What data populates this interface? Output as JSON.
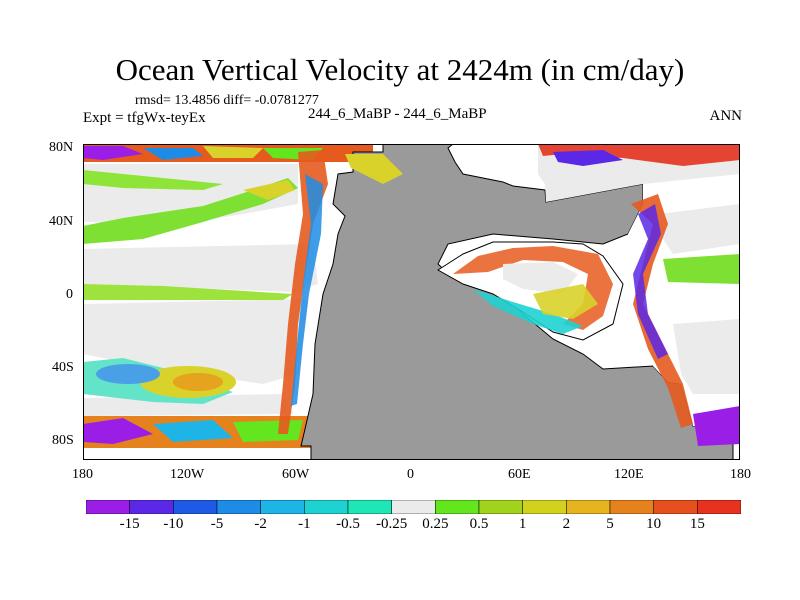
{
  "title": "Ocean Vertical Velocity at 2424m (in cm/day)",
  "stats_text": "rmsd= 13.4856 diff= -0.0781277",
  "expt_text": "Expt = tfgWx-teyEx",
  "center_label": "244_6_MaBP - 244_6_MaBP",
  "season": "ANN",
  "map": {
    "lat_ticks": [
      "80N",
      "40N",
      "0",
      "40S",
      "80S"
    ],
    "lon_ticks": [
      "180",
      "120W",
      "60W",
      "0",
      "60E",
      "120E",
      "180"
    ],
    "land_color": "#9a9a9a",
    "near_zero_color": "#ebebeb"
  },
  "colorbar": {
    "labels": [
      "-15",
      "-10",
      "-5",
      "-2",
      "-1",
      "-0.5",
      "-0.25",
      "0.25",
      "0.5",
      "1",
      "2",
      "5",
      "10",
      "15"
    ],
    "colors": [
      "#9b1ee6",
      "#5a28e6",
      "#1e5ae6",
      "#1e8ce6",
      "#1eb4e6",
      "#1ed2d2",
      "#1ee6b4",
      "#ebebeb",
      "#64e61e",
      "#a0d21e",
      "#d2d21e",
      "#e6b41e",
      "#e6821e",
      "#e6501e",
      "#e6321e"
    ]
  }
}
